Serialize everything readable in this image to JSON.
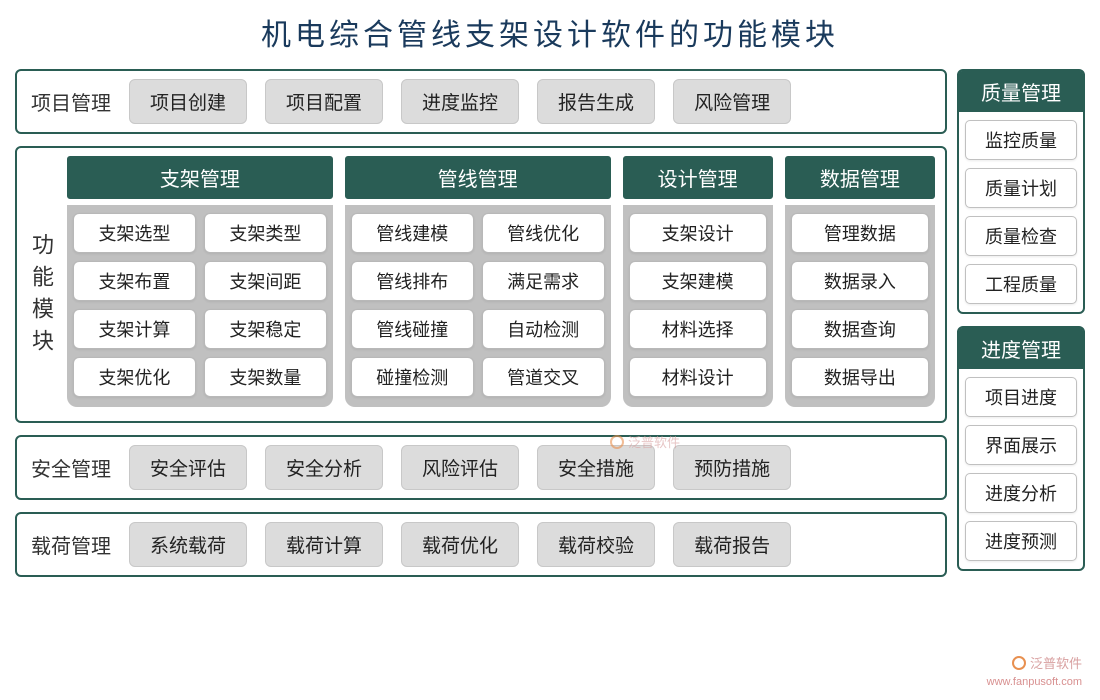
{
  "title": "机电综合管线支架设计软件的功能模块",
  "colors": {
    "header_bg": "#2a5d54",
    "header_text": "#ffffff",
    "panel_border": "#2a5d54",
    "pill_bg": "#dcdcdc",
    "gray_body": "#c0c0c0",
    "chip_bg": "#ffffff",
    "title_color": "#1a3a5c",
    "text_color": "#222222"
  },
  "rows": {
    "project": {
      "label": "项目管理",
      "items": [
        "项目创建",
        "项目配置",
        "进度监控",
        "报告生成",
        "风险管理"
      ]
    },
    "safety": {
      "label": "安全管理",
      "items": [
        "安全评估",
        "安全分析",
        "风险评估",
        "安全措施",
        "预防措施"
      ]
    },
    "load": {
      "label": "载荷管理",
      "items": [
        "系统载荷",
        "载荷计算",
        "载荷优化",
        "载荷校验",
        "载荷报告"
      ]
    }
  },
  "modules": {
    "label": "功能模块",
    "columns": [
      {
        "key": "zhijia",
        "header": "支架管理",
        "layout": "two-col",
        "items": [
          "支架选型",
          "支架类型",
          "支架布置",
          "支架间距",
          "支架计算",
          "支架稳定",
          "支架优化",
          "支架数量"
        ]
      },
      {
        "key": "guanxian",
        "header": "管线管理",
        "layout": "two-col",
        "items": [
          "管线建模",
          "管线优化",
          "管线排布",
          "满足需求",
          "管线碰撞",
          "自动检测",
          "碰撞检测",
          "管道交叉"
        ]
      },
      {
        "key": "sheji",
        "header": "设计管理",
        "layout": "one-col",
        "items": [
          "支架设计",
          "支架建模",
          "材料选择",
          "材料设计"
        ]
      },
      {
        "key": "shuju",
        "header": "数据管理",
        "layout": "one-col",
        "items": [
          "管理数据",
          "数据录入",
          "数据查询",
          "数据导出"
        ]
      }
    ]
  },
  "side": {
    "quality": {
      "header": "质量管理",
      "items": [
        "监控质量",
        "质量计划",
        "质量检查",
        "工程质量"
      ]
    },
    "progress": {
      "header": "进度管理",
      "items": [
        "项目进度",
        "界面展示",
        "进度分析",
        "进度预测"
      ]
    }
  },
  "watermark": {
    "text": "泛普软件",
    "url": "www.fanpusoft.com"
  }
}
